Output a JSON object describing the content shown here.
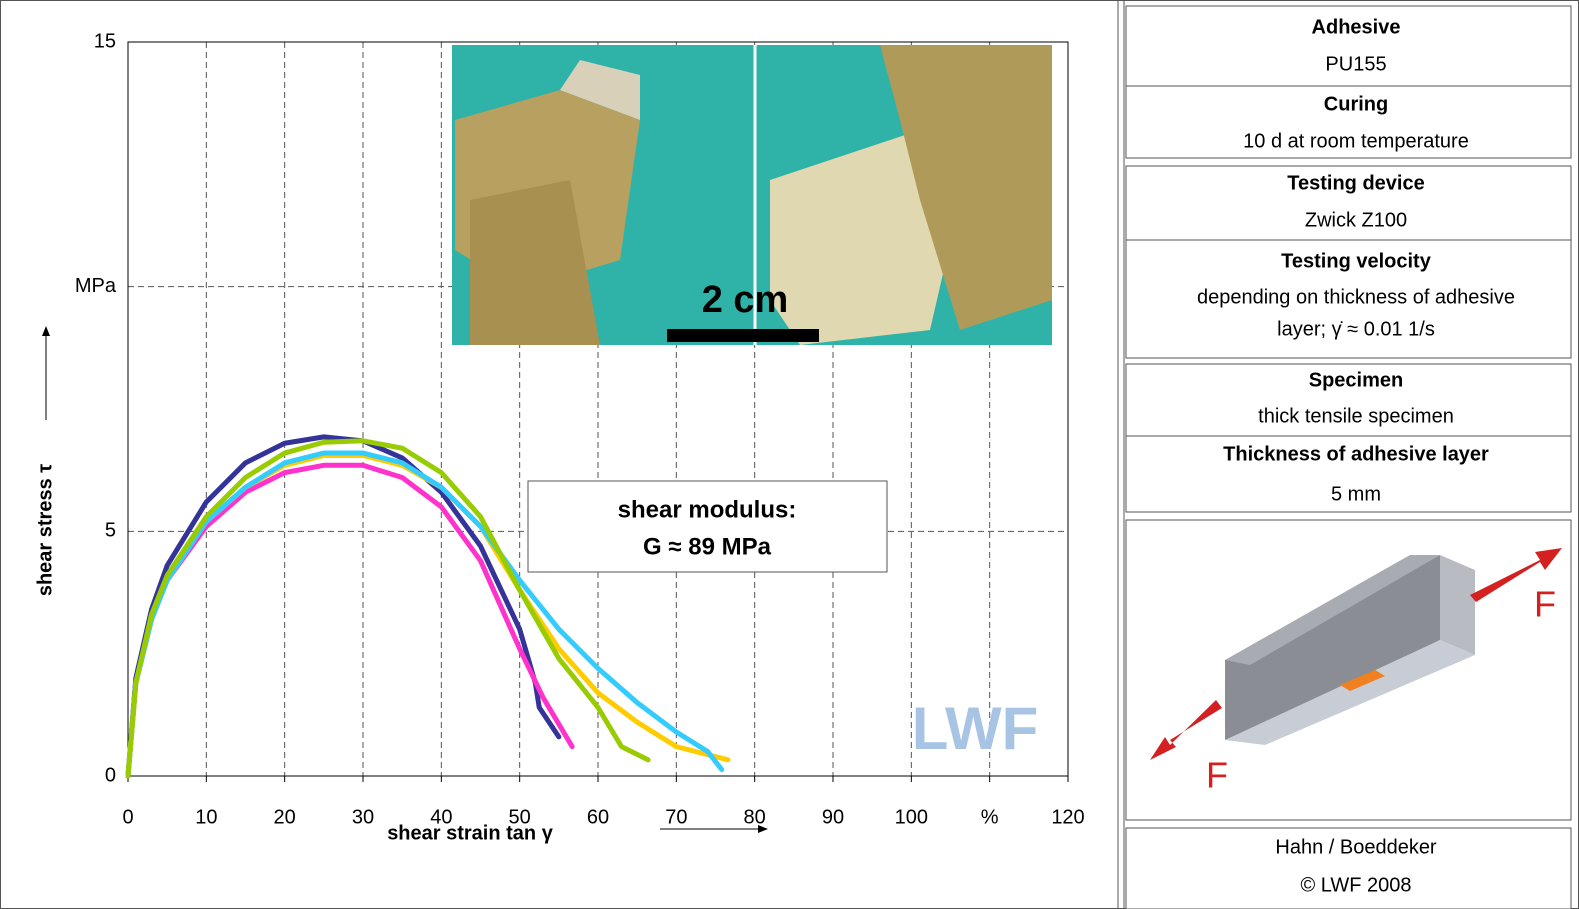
{
  "chart_data": {
    "type": "line",
    "xlabel": "shear strain tan γ",
    "ylabel": "shear stress τ",
    "xlim": [
      0,
      120
    ],
    "ylim": [
      0,
      15
    ],
    "xticks": [
      0,
      10,
      20,
      30,
      40,
      50,
      60,
      70,
      80,
      90,
      100,
      {
        "value": 110,
        "label": "%"
      },
      120
    ],
    "yticks": [
      0,
      5,
      {
        "value": 10,
        "label": "MPa"
      },
      15
    ],
    "grid": true,
    "annotations": {
      "modulus_line1": "shear modulus:",
      "modulus_line2": "G ≈ 89 MPa",
      "scale": "2 cm",
      "logo": "LWF"
    },
    "series": [
      {
        "color": "#333399",
        "x": [
          0,
          1,
          3,
          5,
          10,
          15,
          20,
          25,
          30,
          35,
          40,
          45,
          50,
          52,
          52.5,
          55
        ],
        "values": [
          0,
          2.0,
          3.4,
          4.3,
          5.6,
          6.4,
          6.8,
          6.93,
          6.85,
          6.5,
          5.8,
          4.7,
          3.0,
          1.9,
          1.4,
          0.8
        ]
      },
      {
        "color": "#ff33cc",
        "x": [
          0,
          1,
          3,
          5,
          10,
          15,
          20,
          25,
          30,
          35,
          40,
          45,
          50,
          53,
          56.7
        ],
        "values": [
          0,
          1.9,
          3.2,
          4.0,
          5.1,
          5.8,
          6.2,
          6.35,
          6.35,
          6.1,
          5.5,
          4.4,
          2.6,
          1.6,
          0.6
        ]
      },
      {
        "color": "#ffcc00",
        "x": [
          0,
          1,
          3,
          5,
          10,
          15,
          20,
          25,
          30,
          35,
          40,
          45,
          50,
          55,
          60,
          65,
          70,
          76.6
        ],
        "values": [
          0,
          1.9,
          3.2,
          4.0,
          5.2,
          5.9,
          6.35,
          6.55,
          6.55,
          6.35,
          5.9,
          5.1,
          3.8,
          2.6,
          1.7,
          1.1,
          0.6,
          0.33
        ]
      },
      {
        "color": "#33ccff",
        "x": [
          0,
          1,
          3,
          5,
          10,
          15,
          20,
          25,
          30,
          35,
          40,
          45,
          50,
          55,
          60,
          65,
          70,
          74,
          75.8
        ],
        "values": [
          0,
          1.9,
          3.2,
          4.0,
          5.2,
          5.9,
          6.4,
          6.6,
          6.6,
          6.4,
          5.9,
          5.1,
          4.0,
          3.0,
          2.2,
          1.5,
          0.9,
          0.5,
          0.13
        ]
      },
      {
        "color": "#99cc00",
        "x": [
          0,
          1,
          3,
          5,
          10,
          15,
          20,
          25,
          30,
          35,
          40,
          45,
          50,
          55,
          60,
          63,
          66.4
        ],
        "values": [
          0,
          1.9,
          3.3,
          4.1,
          5.3,
          6.1,
          6.6,
          6.82,
          6.85,
          6.7,
          6.2,
          5.3,
          3.8,
          2.4,
          1.4,
          0.6,
          0.33
        ]
      }
    ]
  },
  "side_panel": {
    "adhesive": {
      "label": "Adhesive",
      "value": "PU155"
    },
    "curing": {
      "label": "Curing",
      "value": "10 d at room temperature"
    },
    "device": {
      "label": "Testing device",
      "value": "Zwick Z100"
    },
    "velocity": {
      "label": "Testing velocity",
      "value": [
        "depending on thickness of adhesive",
        "layer; γ̇ ≈ 0.01 1/s"
      ]
    },
    "specimen": {
      "label": "Specimen",
      "value": "thick tensile specimen"
    },
    "thickness": {
      "label": "Thickness of adhesive layer",
      "value": "5 mm"
    },
    "force_label": "F",
    "author": "Hahn / Boeddeker",
    "copyright": "© LWF 2008"
  }
}
